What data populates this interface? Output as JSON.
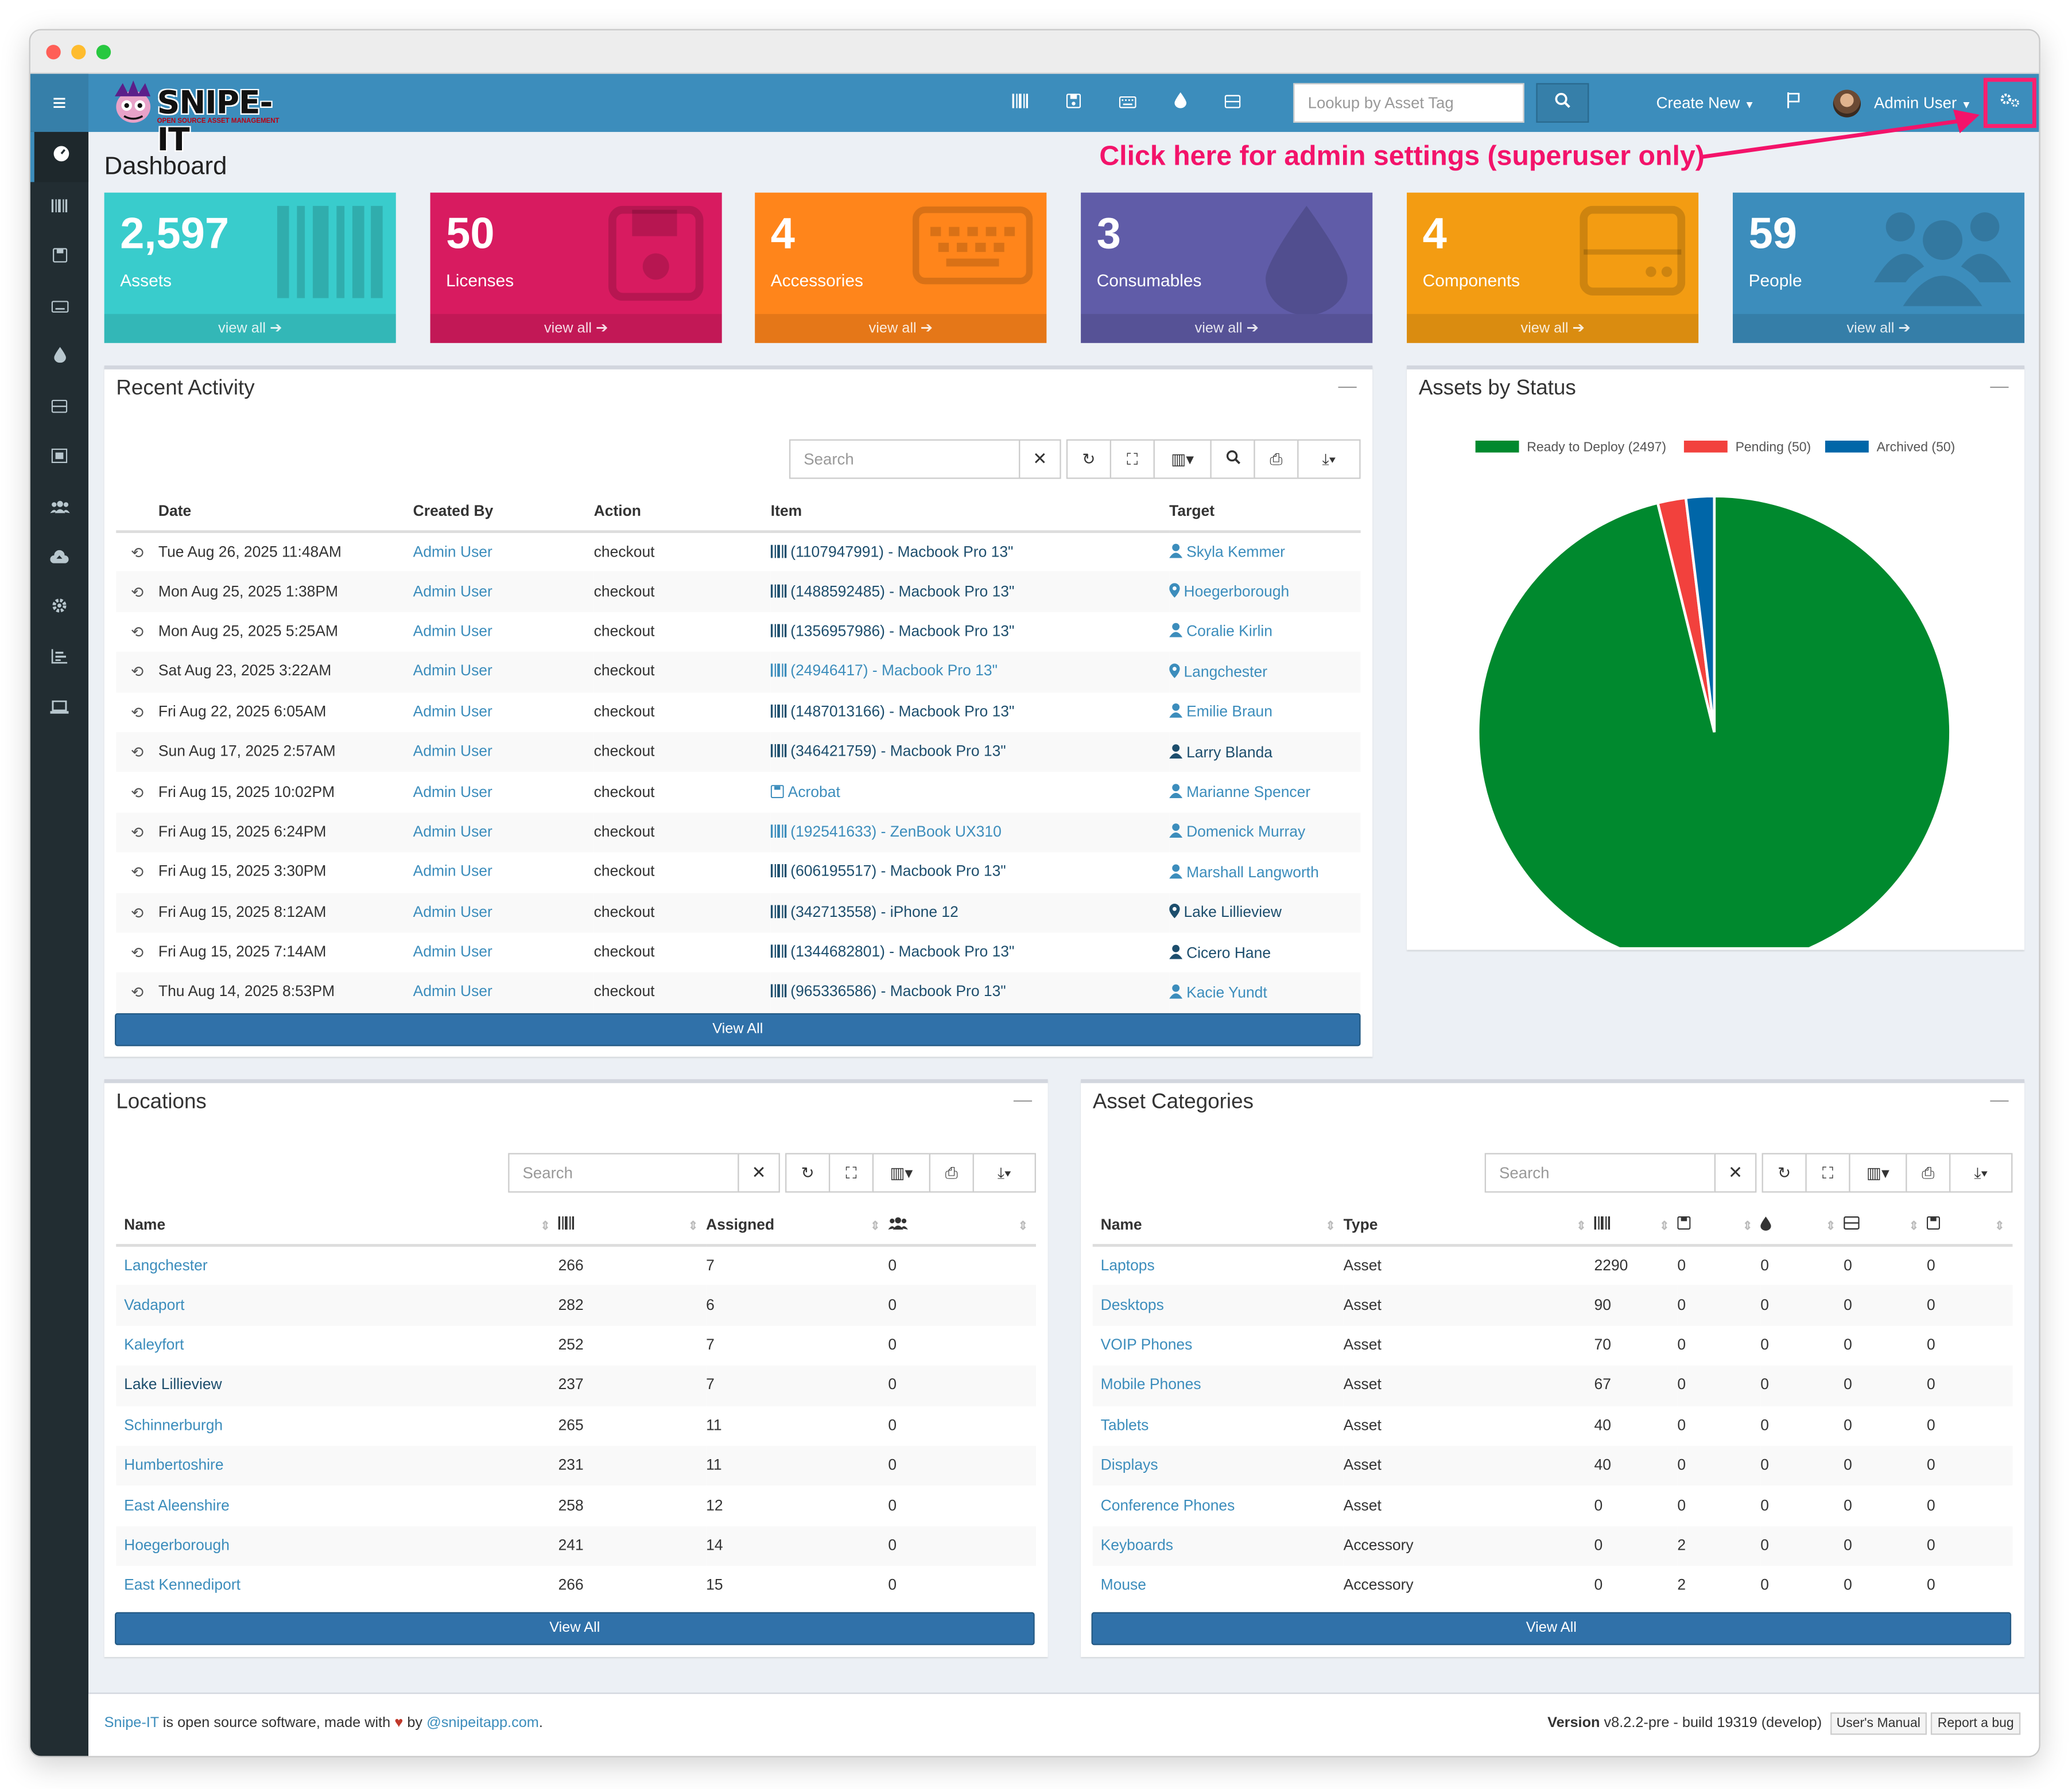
{
  "brand": {
    "name": "SNIPE-IT",
    "tagline": "OPEN SOURCE ASSET MANAGEMENT"
  },
  "nav": {
    "icons": [
      "barcode-icon",
      "floppy-icon",
      "keyboard-icon",
      "tint-icon",
      "hdd-icon"
    ],
    "lookup_placeholder": "Lookup by Asset Tag",
    "create_new": "Create New",
    "user": "Admin User"
  },
  "annotation": "Click here for admin settings (superuser only)",
  "page_title": "Dashboard",
  "tiles": [
    {
      "count": "2,597",
      "label": "Assets",
      "link": "view all",
      "color": "#39cccc"
    },
    {
      "count": "50",
      "label": "Licenses",
      "link": "view all",
      "color": "#d81b60"
    },
    {
      "count": "4",
      "label": "Accessories",
      "link": "view all",
      "color": "#ff851b"
    },
    {
      "count": "3",
      "label": "Consumables",
      "link": "view all",
      "color": "#605ca8"
    },
    {
      "count": "4",
      "label": "Components",
      "link": "view all",
      "color": "#f39c12"
    },
    {
      "count": "59",
      "label": "People",
      "link": "view all",
      "color": "#3c8dbc"
    }
  ],
  "recent": {
    "title": "Recent Activity",
    "search_placeholder": "Search",
    "headers": [
      "Date",
      "Created By",
      "Action",
      "Item",
      "Target"
    ],
    "rows": [
      {
        "date": "Tue Aug 26, 2025 11:48AM",
        "by": "Admin User",
        "action": "checkout",
        "item": "(1107947991) - Macbook Pro 13\"",
        "target": "Skyla Kemmer",
        "ttype": "user",
        "item_type": "asset",
        "item_light": false,
        "target_light": true
      },
      {
        "date": "Mon Aug 25, 2025 1:38PM",
        "by": "Admin User",
        "action": "checkout",
        "item": "(1488592485) - Macbook Pro 13\"",
        "target": "Hoegerborough",
        "ttype": "location",
        "item_type": "asset",
        "item_light": false,
        "target_light": true
      },
      {
        "date": "Mon Aug 25, 2025 5:25AM",
        "by": "Admin User",
        "action": "checkout",
        "item": "(1356957986) - Macbook Pro 13\"",
        "target": "Coralie Kirlin",
        "ttype": "user",
        "item_type": "asset",
        "item_light": false,
        "target_light": true
      },
      {
        "date": "Sat Aug 23, 2025 3:22AM",
        "by": "Admin User",
        "action": "checkout",
        "item": "(24946417) - Macbook Pro 13\"",
        "target": "Langchester",
        "ttype": "location",
        "item_type": "asset",
        "item_light": true,
        "target_light": true
      },
      {
        "date": "Fri Aug 22, 2025 6:05AM",
        "by": "Admin User",
        "action": "checkout",
        "item": "(1487013166) - Macbook Pro 13\"",
        "target": "Emilie Braun",
        "ttype": "user",
        "item_type": "asset",
        "item_light": false,
        "target_light": true
      },
      {
        "date": "Sun Aug 17, 2025 2:57AM",
        "by": "Admin User",
        "action": "checkout",
        "item": "(346421759) - Macbook Pro 13\"",
        "target": "Larry Blanda",
        "ttype": "user",
        "item_type": "asset",
        "item_light": false,
        "target_light": false
      },
      {
        "date": "Fri Aug 15, 2025 10:02PM",
        "by": "Admin User",
        "action": "checkout",
        "item": "Acrobat",
        "target": "Marianne Spencer",
        "ttype": "user",
        "item_type": "license",
        "item_light": true,
        "target_light": true
      },
      {
        "date": "Fri Aug 15, 2025 6:24PM",
        "by": "Admin User",
        "action": "checkout",
        "item": "(192541633) - ZenBook UX310",
        "target": "Domenick Murray",
        "ttype": "user",
        "item_type": "asset",
        "item_light": true,
        "target_light": true
      },
      {
        "date": "Fri Aug 15, 2025 3:30PM",
        "by": "Admin User",
        "action": "checkout",
        "item": "(606195517) - Macbook Pro 13\"",
        "target": "Marshall Langworth",
        "ttype": "user",
        "item_type": "asset",
        "item_light": false,
        "target_light": true
      },
      {
        "date": "Fri Aug 15, 2025 8:12AM",
        "by": "Admin User",
        "action": "checkout",
        "item": "(342713558) - iPhone 12",
        "target": "Lake Lillieview",
        "ttype": "location",
        "item_type": "asset",
        "item_light": false,
        "target_light": false
      },
      {
        "date": "Fri Aug 15, 2025 7:14AM",
        "by": "Admin User",
        "action": "checkout",
        "item": "(1344682801) - Macbook Pro 13\"",
        "target": "Cicero Hane",
        "ttype": "user",
        "item_type": "asset",
        "item_light": false,
        "target_light": false
      },
      {
        "date": "Thu Aug 14, 2025 8:53PM",
        "by": "Admin User",
        "action": "checkout",
        "item": "(965336586) - Macbook Pro 13\"",
        "target": "Kacie Yundt",
        "ttype": "user",
        "item_type": "asset",
        "item_light": false,
        "target_light": true
      }
    ],
    "view_all": "View All"
  },
  "status": {
    "title": "Assets by Status",
    "chart_data": {
      "type": "pie",
      "categories": [
        "Ready to Deploy (2497)",
        "Pending (50)",
        "Archived (50)"
      ],
      "values": [
        2497,
        50,
        50
      ],
      "colors": [
        "#00892e",
        "#f2413d",
        "#0066a8"
      ],
      "legend": "top"
    }
  },
  "locations": {
    "title": "Locations",
    "search_placeholder": "Search",
    "headers": [
      "Name",
      "",
      "Assigned",
      ""
    ],
    "rows": [
      {
        "name": "Langchester",
        "assets": "266",
        "assigned": "7",
        "users": "0",
        "light": true
      },
      {
        "name": "Vadaport",
        "assets": "282",
        "assigned": "6",
        "users": "0",
        "light": true
      },
      {
        "name": "Kaleyfort",
        "assets": "252",
        "assigned": "7",
        "users": "0",
        "light": true
      },
      {
        "name": "Lake Lillieview",
        "assets": "237",
        "assigned": "7",
        "users": "0",
        "light": false
      },
      {
        "name": "Schinnerburgh",
        "assets": "265",
        "assigned": "11",
        "users": "0",
        "light": true
      },
      {
        "name": "Humbertoshire",
        "assets": "231",
        "assigned": "11",
        "users": "0",
        "light": true
      },
      {
        "name": "East Aleenshire",
        "assets": "258",
        "assigned": "12",
        "users": "0",
        "light": true
      },
      {
        "name": "Hoegerborough",
        "assets": "241",
        "assigned": "14",
        "users": "0",
        "light": true
      },
      {
        "name": "East Kennediport",
        "assets": "266",
        "assigned": "15",
        "users": "0",
        "light": true
      }
    ],
    "view_all": "View All"
  },
  "categories": {
    "title": "Asset Categories",
    "search_placeholder": "Search",
    "headers": [
      "Name",
      "Type"
    ],
    "rows": [
      {
        "name": "Laptops",
        "type": "Asset",
        "v": [
          "2290",
          "0",
          "0",
          "0",
          "0"
        ]
      },
      {
        "name": "Desktops",
        "type": "Asset",
        "v": [
          "90",
          "0",
          "0",
          "0",
          "0"
        ]
      },
      {
        "name": "VOIP Phones",
        "type": "Asset",
        "v": [
          "70",
          "0",
          "0",
          "0",
          "0"
        ]
      },
      {
        "name": "Mobile Phones",
        "type": "Asset",
        "v": [
          "67",
          "0",
          "0",
          "0",
          "0"
        ]
      },
      {
        "name": "Tablets",
        "type": "Asset",
        "v": [
          "40",
          "0",
          "0",
          "0",
          "0"
        ]
      },
      {
        "name": "Displays",
        "type": "Asset",
        "v": [
          "40",
          "0",
          "0",
          "0",
          "0"
        ]
      },
      {
        "name": "Conference Phones",
        "type": "Asset",
        "v": [
          "0",
          "0",
          "0",
          "0",
          "0"
        ]
      },
      {
        "name": "Keyboards",
        "type": "Accessory",
        "v": [
          "0",
          "2",
          "0",
          "0",
          "0"
        ]
      },
      {
        "name": "Mouse",
        "type": "Accessory",
        "v": [
          "0",
          "2",
          "0",
          "0",
          "0"
        ]
      }
    ],
    "view_all": "View All"
  },
  "footer": {
    "brand": "Snipe-IT",
    "text1": " is open source software, made with ",
    "text2": " by ",
    "handle": "@snipeitapp.com",
    "period": ".",
    "version_label": "Version",
    "version": " v8.2.2-pre - build 19319 (develop)",
    "manual": "User's Manual",
    "bug": "Report a bug"
  }
}
